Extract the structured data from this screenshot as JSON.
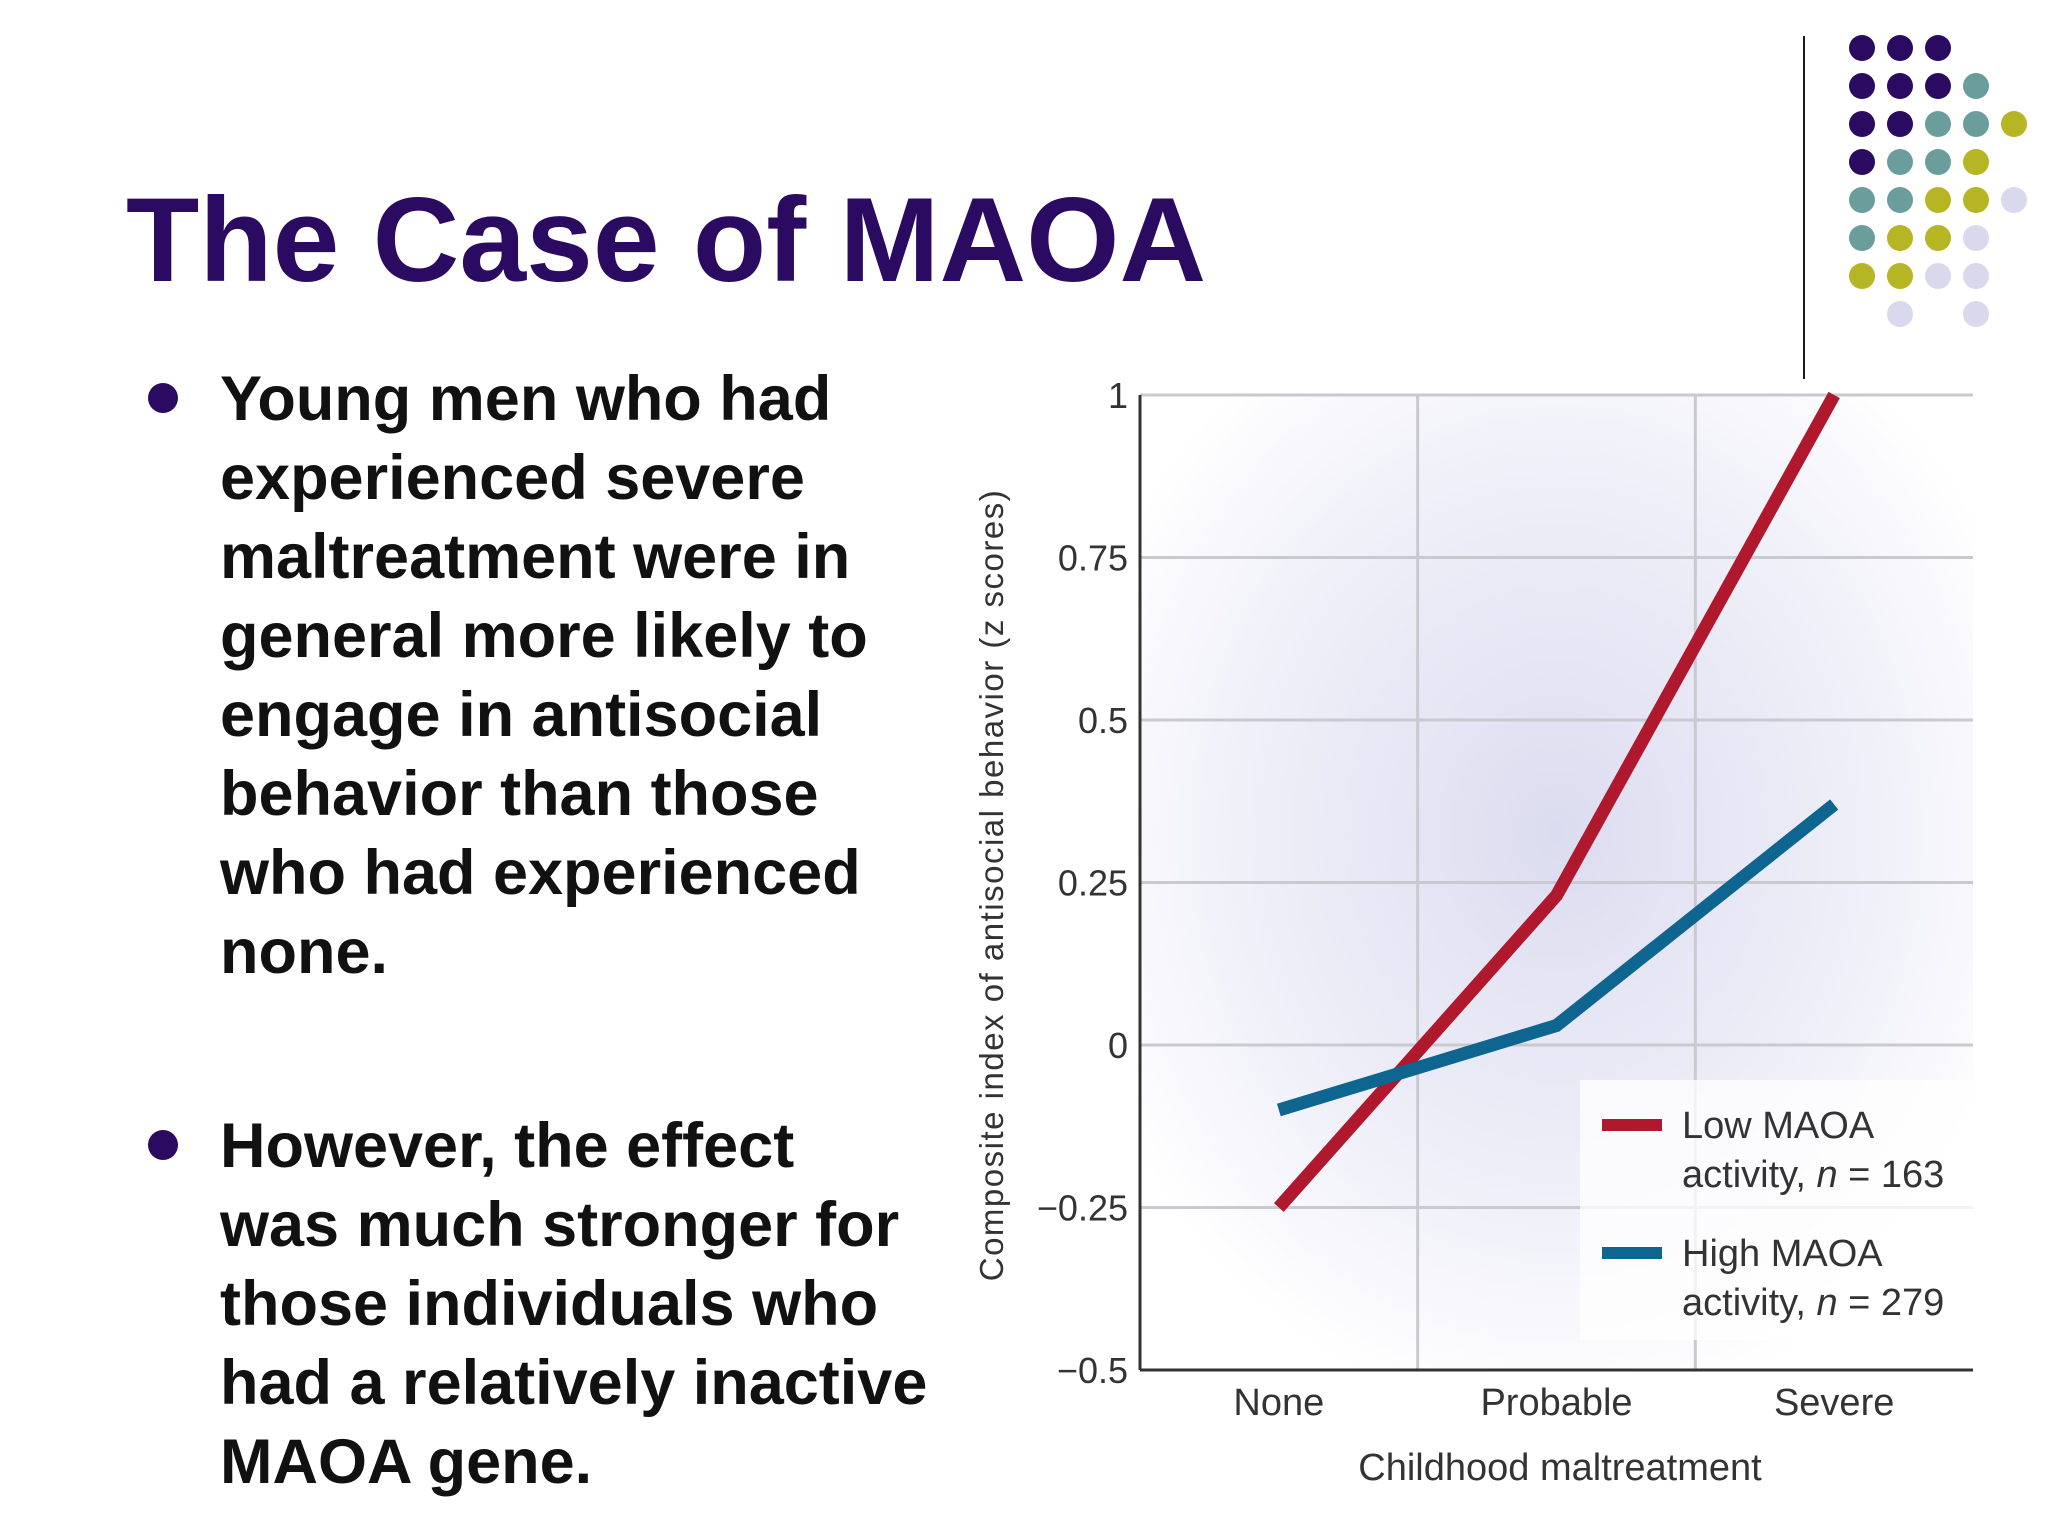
{
  "slide": {
    "title": "The Case of MAOA",
    "bullets": [
      "Young men who had experienced severe maltreatment were in general more likely to engage in antisocial behavior than those who had experienced none.",
      "However, the effect was much stronger for those individuals who had a relatively inactive MAOA gene."
    ]
  },
  "colors": {
    "title": "#2b0b62",
    "dot_purple": "#2b0b62",
    "dot_teal": "#6a9d9c",
    "dot_olive": "#b6b524",
    "dot_lavender": "#d9d8ec",
    "low_maoa": "#b0182e",
    "high_maoa": "#0e6590"
  },
  "chart_data": {
    "type": "line",
    "categories": [
      "None",
      "Probable",
      "Severe"
    ],
    "series": [
      {
        "name_prefix": "Low MAOA",
        "name_line2": "activity,",
        "n": "n",
        "n_value": "= 163",
        "values": [
          -0.25,
          0.23,
          1.0
        ]
      },
      {
        "name_prefix": "High MAOA",
        "name_line2": "activity,",
        "n": "n",
        "n_value": "= 279",
        "values": [
          -0.1,
          0.03,
          0.37
        ]
      }
    ],
    "xlabel": "Childhood maltreatment",
    "ylabel": "Composite index of antisocial behavior (z scores)",
    "ylim": [
      -0.5,
      1
    ],
    "yticks": [
      1,
      0.75,
      0.5,
      0.25,
      0,
      -0.25,
      -0.5
    ],
    "ytick_labels": [
      "1",
      "0.75",
      "0.5",
      "0.25",
      "0",
      "−0.25",
      "−0.5"
    ],
    "grid": true,
    "legend": "bottom-right"
  }
}
